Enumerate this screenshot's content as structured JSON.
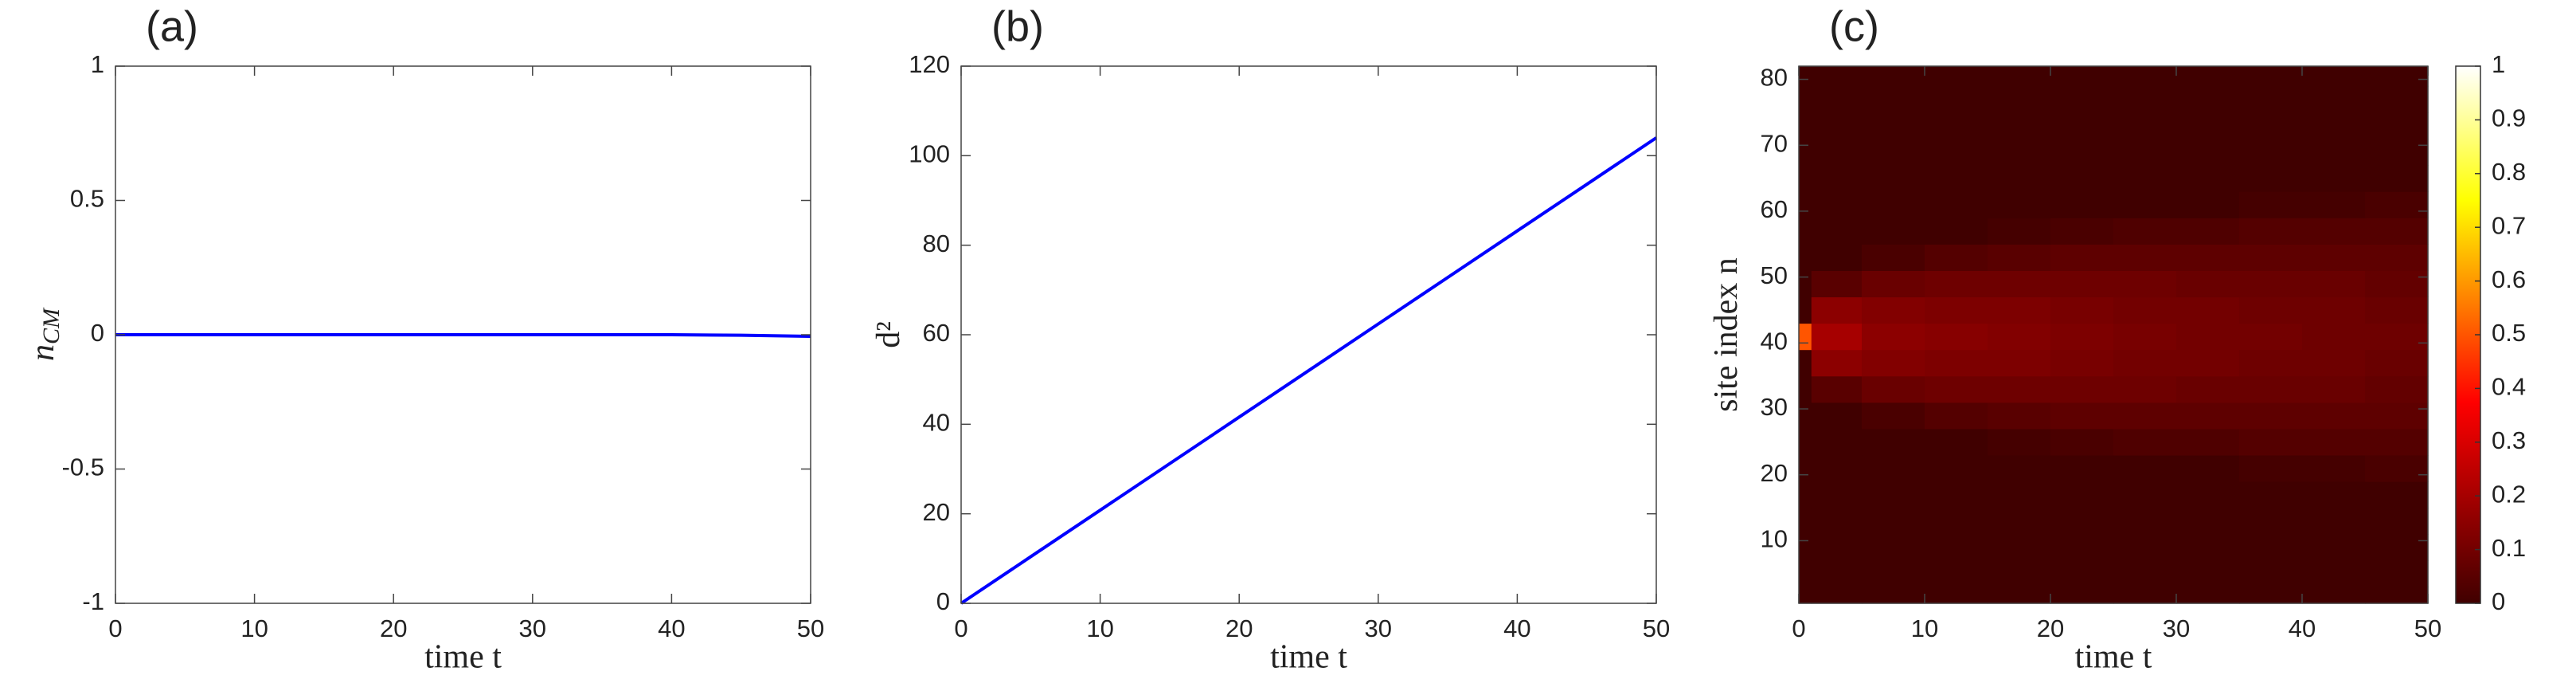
{
  "chart_data": [
    {
      "type": "line",
      "panel": "(a)",
      "xlabel": "time t",
      "ylabel": {
        "text": "n",
        "sub": "CM"
      },
      "x": [
        0,
        5,
        10,
        15,
        20,
        25,
        30,
        35,
        40,
        45,
        50
      ],
      "series": [
        {
          "color": "#0000ff",
          "values": [
            0,
            0,
            0,
            0,
            0,
            0,
            0,
            0,
            0,
            -0.002,
            -0.006
          ]
        }
      ],
      "xlim": [
        0,
        50
      ],
      "xticks": [
        0,
        10,
        20,
        30,
        40,
        50
      ],
      "ylim": [
        -1,
        1
      ],
      "yticks": [
        -1,
        -0.5,
        0,
        0.5,
        1
      ]
    },
    {
      "type": "line",
      "panel": "(b)",
      "xlabel": "time t",
      "ylabel": {
        "text": "d²"
      },
      "x": [
        0,
        5,
        10,
        15,
        20,
        25,
        30,
        35,
        40,
        45,
        50
      ],
      "series": [
        {
          "color": "#0000ff",
          "values": [
            0,
            10.4,
            20.8,
            31.2,
            41.6,
            52,
            62.4,
            72.8,
            83.2,
            93.6,
            104
          ]
        }
      ],
      "xlim": [
        0,
        50
      ],
      "xticks": [
        0,
        10,
        20,
        30,
        40,
        50
      ],
      "ylim": [
        0,
        120
      ],
      "yticks": [
        0,
        20,
        40,
        60,
        80,
        100,
        120
      ]
    },
    {
      "type": "heatmap",
      "panel": "(c)",
      "xlabel": "time t",
      "ylabel": {
        "text": "site index n"
      },
      "colormap": "hot",
      "x": [
        0,
        1,
        5,
        10,
        15,
        20,
        25,
        30,
        35,
        40,
        45,
        50
      ],
      "y": [
        0.5,
        3,
        7,
        11,
        15,
        19,
        23,
        27,
        31,
        35,
        39,
        43,
        47,
        51,
        55,
        59,
        63,
        67,
        71,
        75,
        79,
        82
      ],
      "z": [
        [
          0,
          0,
          0,
          0,
          0,
          0,
          0,
          0,
          0,
          0,
          0
        ],
        [
          0,
          0,
          0,
          0,
          0,
          0,
          0,
          0,
          0,
          0,
          0
        ],
        [
          0,
          0,
          0,
          0,
          0,
          0,
          0,
          0,
          0,
          0,
          0
        ],
        [
          0,
          0,
          0,
          0,
          0,
          0,
          0,
          0,
          0,
          0,
          0
        ],
        [
          0,
          0,
          0,
          0,
          0,
          0,
          0,
          0,
          0,
          0,
          0
        ],
        [
          0,
          0,
          0,
          0,
          0,
          0,
          0,
          0,
          0.01,
          0.01,
          0.02
        ],
        [
          0,
          0,
          0,
          0,
          0.01,
          0.02,
          0.03,
          0.03,
          0.04,
          0.04,
          0.04
        ],
        [
          0,
          0,
          0.02,
          0.04,
          0.05,
          0.06,
          0.06,
          0.06,
          0.06,
          0.06,
          0.06
        ],
        [
          0,
          0.05,
          0.08,
          0.09,
          0.09,
          0.09,
          0.09,
          0.08,
          0.08,
          0.08,
          0.07
        ],
        [
          0,
          0.15,
          0.13,
          0.12,
          0.12,
          0.11,
          0.1,
          0.1,
          0.09,
          0.09,
          0.08
        ],
        [
          0.5,
          0.2,
          0.15,
          0.14,
          0.13,
          0.12,
          0.11,
          0.1,
          0.1,
          0.09,
          0.09
        ],
        [
          0,
          0.15,
          0.13,
          0.12,
          0.12,
          0.11,
          0.1,
          0.1,
          0.09,
          0.09,
          0.08
        ],
        [
          0,
          0.05,
          0.08,
          0.09,
          0.09,
          0.09,
          0.09,
          0.08,
          0.08,
          0.08,
          0.07
        ],
        [
          0,
          0,
          0.02,
          0.04,
          0.05,
          0.06,
          0.06,
          0.06,
          0.06,
          0.06,
          0.06
        ],
        [
          0,
          0,
          0,
          0,
          0.01,
          0.02,
          0.03,
          0.03,
          0.04,
          0.04,
          0.04
        ],
        [
          0,
          0,
          0,
          0,
          0,
          0,
          0,
          0,
          0.01,
          0.01,
          0.02
        ],
        [
          0,
          0,
          0,
          0,
          0,
          0,
          0,
          0,
          0,
          0,
          0
        ],
        [
          0,
          0,
          0,
          0,
          0,
          0,
          0,
          0,
          0,
          0,
          0
        ],
        [
          0,
          0,
          0,
          0,
          0,
          0,
          0,
          0,
          0,
          0,
          0
        ],
        [
          0,
          0,
          0,
          0,
          0,
          0,
          0,
          0,
          0,
          0,
          0
        ],
        [
          0,
          0,
          0,
          0,
          0,
          0,
          0,
          0,
          0,
          0,
          0
        ]
      ],
      "xlim": [
        0,
        50
      ],
      "xticks": [
        0,
        10,
        20,
        30,
        40,
        50
      ],
      "ylim": [
        0.5,
        82
      ],
      "yticks": [
        10,
        20,
        30,
        40,
        50,
        60,
        70,
        80
      ],
      "clim": [
        0,
        1
      ],
      "cticks": [
        0,
        0.1,
        0.2,
        0.3,
        0.4,
        0.5,
        0.6,
        0.7,
        0.8,
        0.9,
        1
      ]
    }
  ]
}
